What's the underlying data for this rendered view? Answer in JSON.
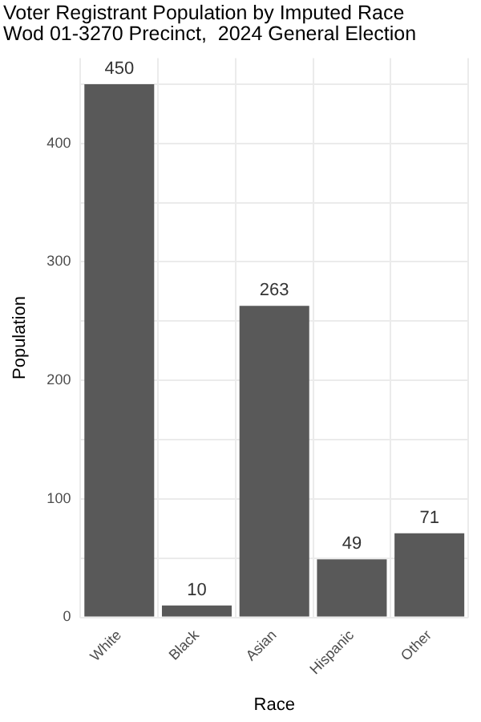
{
  "chart_data": {
    "type": "bar",
    "title": "Voter Registrant Population by Imputed Race",
    "subtitle": "Wod 01-3270 Precinct,  2024 General Election",
    "xlabel": "Race",
    "ylabel": "Population",
    "categories": [
      "White",
      "Black",
      "Asian",
      "Hispanic",
      "Other"
    ],
    "values": [
      450,
      10,
      263,
      49,
      71
    ],
    "color": "#595959",
    "ylim": [
      0,
      472
    ],
    "yticks": [
      0,
      {
        "value": 50,
        "label": null
      },
      100,
      {
        "value": 150,
        "label": null
      },
      200,
      {
        "value": 250,
        "label": null
      },
      300,
      {
        "value": 350,
        "label": null
      },
      400,
      {
        "value": 450,
        "label": null
      }
    ],
    "grid": true,
    "data_labels": true,
    "legend": false
  }
}
